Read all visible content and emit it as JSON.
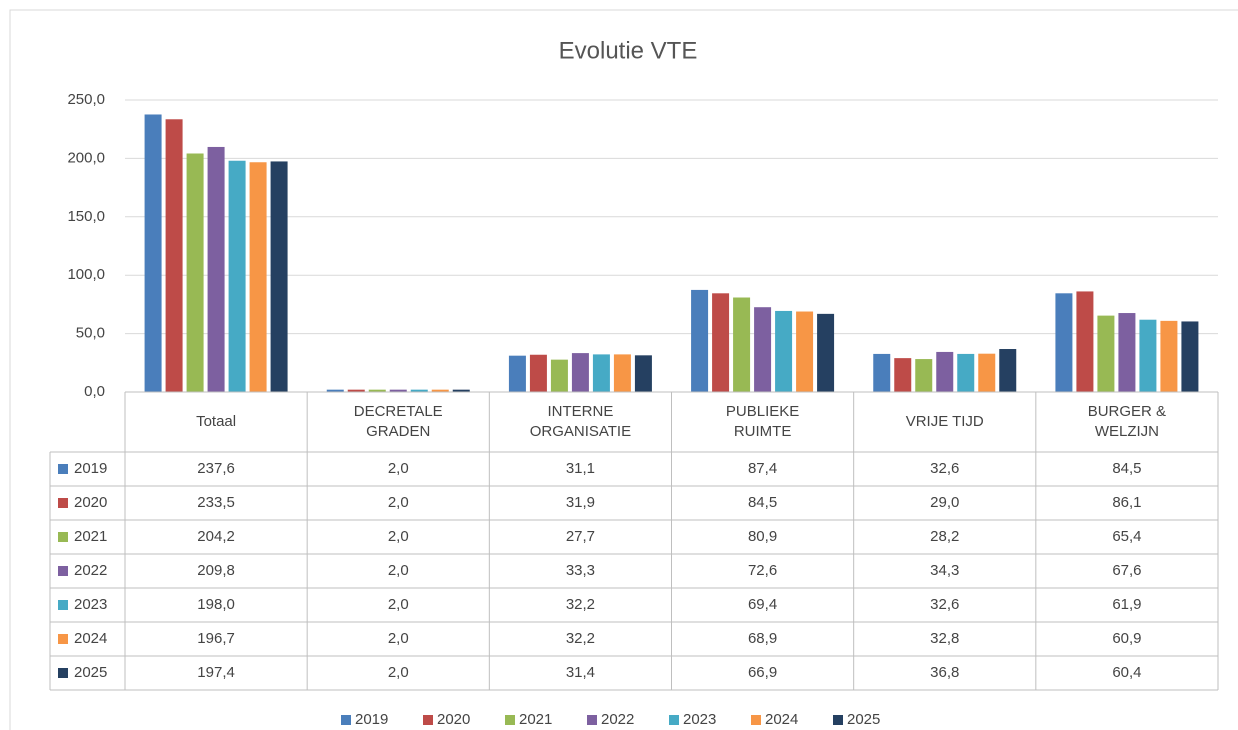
{
  "chart_data": {
    "type": "bar",
    "title": "Evolutie VTE",
    "categories": [
      "Totaal",
      "DECRETALE GRADEN",
      "INTERNE ORGANISATIE",
      "PUBLIEKE RUIMTE",
      "VRIJE TIJD",
      "BURGER & WELZIJN"
    ],
    "series": [
      {
        "name": "2019",
        "color": "#4a7ebb",
        "values": [
          237.6,
          2.0,
          31.1,
          87.4,
          32.6,
          84.5
        ],
        "value_labels": [
          "237,6",
          "2,0",
          "31,1",
          "87,4",
          "32,6",
          "84,5"
        ]
      },
      {
        "name": "2020",
        "color": "#be4b48",
        "values": [
          233.5,
          2.0,
          31.9,
          84.5,
          29.0,
          86.1
        ],
        "value_labels": [
          "233,5",
          "2,0",
          "31,9",
          "84,5",
          "29,0",
          "86,1"
        ]
      },
      {
        "name": "2021",
        "color": "#98b954",
        "values": [
          204.2,
          2.0,
          27.7,
          80.9,
          28.2,
          65.4
        ],
        "value_labels": [
          "204,2",
          "2,0",
          "27,7",
          "80,9",
          "28,2",
          "65,4"
        ]
      },
      {
        "name": "2022",
        "color": "#7d60a0",
        "values": [
          209.8,
          2.0,
          33.3,
          72.6,
          34.3,
          67.6
        ],
        "value_labels": [
          "209,8",
          "2,0",
          "33,3",
          "72,6",
          "34,3",
          "67,6"
        ]
      },
      {
        "name": "2023",
        "color": "#46aac5",
        "values": [
          198.0,
          2.0,
          32.2,
          69.4,
          32.6,
          61.9
        ],
        "value_labels": [
          "198,0",
          "2,0",
          "32,2",
          "69,4",
          "32,6",
          "61,9"
        ]
      },
      {
        "name": "2024",
        "color": "#f79646",
        "values": [
          196.7,
          2.0,
          32.2,
          68.9,
          32.8,
          60.9
        ],
        "value_labels": [
          "196,7",
          "2,0",
          "32,2",
          "68,9",
          "32,8",
          "60,9"
        ]
      },
      {
        "name": "2025",
        "color": "#254061",
        "values": [
          197.4,
          2.0,
          31.4,
          66.9,
          36.8,
          60.4
        ],
        "value_labels": [
          "197,4",
          "2,0",
          "31,4",
          "66,9",
          "36,8",
          "60,4"
        ]
      }
    ],
    "ylim": [
      0,
      250
    ],
    "yticks": [
      {
        "value": 0,
        "label": "0,0"
      },
      {
        "value": 50,
        "label": "50,0"
      },
      {
        "value": 100,
        "label": "100,0"
      },
      {
        "value": 150,
        "label": "150,0"
      },
      {
        "value": 200,
        "label": "200,0"
      },
      {
        "value": 250,
        "label": "250,0"
      }
    ],
    "grid": true
  }
}
